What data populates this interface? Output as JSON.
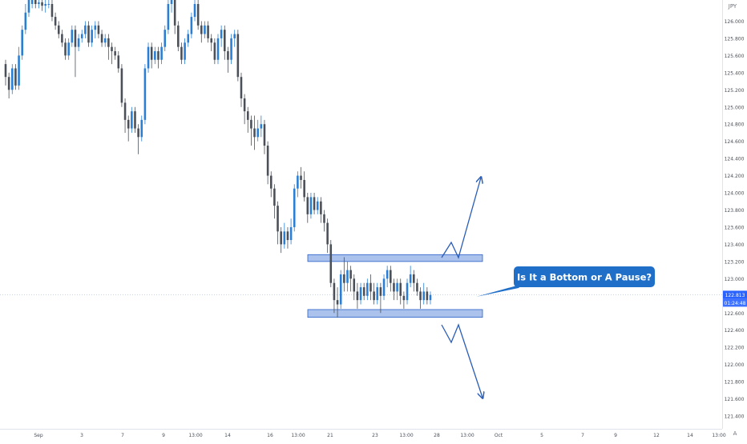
{
  "chart_data": {
    "type": "candlestick",
    "currency_label": "JPY",
    "y_axis_ticks": [
      "126.000",
      "125.800",
      "125.600",
      "125.400",
      "125.200",
      "125.000",
      "124.800",
      "124.600",
      "124.400",
      "124.200",
      "124.000",
      "123.800",
      "123.600",
      "123.400",
      "123.200",
      "123.000",
      "122.800",
      "122.600",
      "122.400",
      "122.200",
      "122.000",
      "121.800",
      "121.600",
      "121.400"
    ],
    "x_axis_ticks": [
      "Sep",
      "3",
      "7",
      "9",
      "13:00",
      "14",
      "16",
      "13:00",
      "21",
      "23",
      "13:00",
      "28",
      "13:00",
      "Oct",
      "5",
      "7",
      "9",
      "12",
      "14",
      "13:00"
    ],
    "last_price": "122.813",
    "countdown": "01:24:48",
    "axis_mode_label": "A",
    "annotation": "Is It a Bottom or A Pause?",
    "resistance_zone": [
      123.2,
      123.28
    ],
    "support_zone": [
      122.55,
      122.64
    ],
    "ylim": [
      121.35,
      126.25
    ],
    "colors": {
      "up": "#2a7fd4",
      "down": "#4a4f58",
      "zone": "#8faee6",
      "zone_border": "#2a62c8",
      "arrow": "#2a5db8",
      "label_bg": "#1f6fc9",
      "price_tag": "#2962ff"
    },
    "candles": [
      [
        125.5,
        125.35,
        125.25,
        125.55
      ],
      [
        125.35,
        125.2,
        125.1,
        125.4
      ],
      [
        125.2,
        125.45,
        125.15,
        125.5
      ],
      [
        125.45,
        125.25,
        125.2,
        125.5
      ],
      [
        125.25,
        125.6,
        125.2,
        125.7
      ],
      [
        125.6,
        125.9,
        125.55,
        125.95
      ],
      [
        125.9,
        126.1,
        125.85,
        126.2
      ],
      [
        126.1,
        126.25,
        126.05,
        126.3
      ],
      [
        126.2,
        126.25,
        126.15,
        126.35
      ],
      [
        126.25,
        126.2,
        126.15,
        126.3
      ],
      [
        126.2,
        126.22,
        126.15,
        126.28
      ],
      [
        126.22,
        126.18,
        126.12,
        126.25
      ],
      [
        126.18,
        126.2,
        126.1,
        126.25
      ],
      [
        126.2,
        126.2,
        126.15,
        126.28
      ],
      [
        126.2,
        126.05,
        126.0,
        126.25
      ],
      [
        126.05,
        125.95,
        125.9,
        126.1
      ],
      [
        125.95,
        125.85,
        125.8,
        126.0
      ],
      [
        125.85,
        125.75,
        125.7,
        125.9
      ],
      [
        125.75,
        125.6,
        125.55,
        125.8
      ],
      [
        125.6,
        125.75,
        125.55,
        125.8
      ],
      [
        125.75,
        125.9,
        125.7,
        125.95
      ],
      [
        125.9,
        125.7,
        125.35,
        125.95
      ],
      [
        125.7,
        125.8,
        125.65,
        125.85
      ],
      [
        125.8,
        125.85,
        125.75,
        125.9
      ],
      [
        125.85,
        125.95,
        125.8,
        126.0
      ],
      [
        125.95,
        125.75,
        125.7,
        126.0
      ],
      [
        125.75,
        125.9,
        125.7,
        125.95
      ],
      [
        125.9,
        125.95,
        125.8,
        126.0
      ],
      [
        125.95,
        125.85,
        125.8,
        126.0
      ],
      [
        125.85,
        125.75,
        125.7,
        125.9
      ],
      [
        125.75,
        125.8,
        125.7,
        125.85
      ],
      [
        125.8,
        125.7,
        125.55,
        125.85
      ],
      [
        125.7,
        125.65,
        125.5,
        125.75
      ],
      [
        125.65,
        125.6,
        125.55,
        125.7
      ],
      [
        125.6,
        125.45,
        125.4,
        125.65
      ],
      [
        125.45,
        125.05,
        125.0,
        125.5
      ],
      [
        125.05,
        124.85,
        124.7,
        125.1
      ],
      [
        124.85,
        124.75,
        124.6,
        124.9
      ],
      [
        124.75,
        124.95,
        124.7,
        125.0
      ],
      [
        124.95,
        124.75,
        124.7,
        125.0
      ],
      [
        124.75,
        124.65,
        124.45,
        124.8
      ],
      [
        124.65,
        124.85,
        124.6,
        124.9
      ],
      [
        124.85,
        125.45,
        124.8,
        125.5
      ],
      [
        125.45,
        125.7,
        125.4,
        125.75
      ],
      [
        125.7,
        125.55,
        125.45,
        125.75
      ],
      [
        125.55,
        125.65,
        125.5,
        125.7
      ],
      [
        125.65,
        125.55,
        125.45,
        125.7
      ],
      [
        125.55,
        125.7,
        125.5,
        125.75
      ],
      [
        125.7,
        125.9,
        125.65,
        125.95
      ],
      [
        125.9,
        126.2,
        125.85,
        126.25
      ],
      [
        126.2,
        126.3,
        126.1,
        126.35
      ],
      [
        126.3,
        125.95,
        125.85,
        126.35
      ],
      [
        125.95,
        125.7,
        125.65,
        126.0
      ],
      [
        125.7,
        125.55,
        125.5,
        125.75
      ],
      [
        125.55,
        125.75,
        125.5,
        125.8
      ],
      [
        125.75,
        125.85,
        125.7,
        125.9
      ],
      [
        125.85,
        126.05,
        125.8,
        126.1
      ],
      [
        126.05,
        126.2,
        126.0,
        126.25
      ],
      [
        126.2,
        125.95,
        125.9,
        126.25
      ],
      [
        125.95,
        125.85,
        125.75,
        126.0
      ],
      [
        125.85,
        125.95,
        125.8,
        126.0
      ],
      [
        125.95,
        125.8,
        125.75,
        126.0
      ],
      [
        125.8,
        125.75,
        125.65,
        125.85
      ],
      [
        125.75,
        125.55,
        125.5,
        125.8
      ],
      [
        125.55,
        125.8,
        125.5,
        125.85
      ],
      [
        125.8,
        125.9,
        125.7,
        125.95
      ],
      [
        125.9,
        125.65,
        125.55,
        125.95
      ],
      [
        125.65,
        125.55,
        125.4,
        125.7
      ],
      [
        125.55,
        125.8,
        125.5,
        125.85
      ],
      [
        125.8,
        125.85,
        125.7,
        125.9
      ],
      [
        125.85,
        125.35,
        125.3,
        125.9
      ],
      [
        125.35,
        125.1,
        125.0,
        125.4
      ],
      [
        125.1,
        124.95,
        124.8,
        125.15
      ],
      [
        124.95,
        124.85,
        124.7,
        125.0
      ],
      [
        124.85,
        124.75,
        124.55,
        124.9
      ],
      [
        124.75,
        124.65,
        124.5,
        124.9
      ],
      [
        124.65,
        124.75,
        124.6,
        124.85
      ],
      [
        124.75,
        124.8,
        124.65,
        124.9
      ],
      [
        124.8,
        124.55,
        124.45,
        124.85
      ],
      [
        124.55,
        124.2,
        124.1,
        124.6
      ],
      [
        124.2,
        124.05,
        123.95,
        124.25
      ],
      [
        124.05,
        123.85,
        123.7,
        124.1
      ],
      [
        123.85,
        123.55,
        123.4,
        123.9
      ],
      [
        123.55,
        123.4,
        123.3,
        123.6
      ],
      [
        123.4,
        123.55,
        123.35,
        123.65
      ],
      [
        123.55,
        123.45,
        123.35,
        123.6
      ],
      [
        123.45,
        123.6,
        123.4,
        123.7
      ],
      [
        123.6,
        124.05,
        123.55,
        124.1
      ],
      [
        124.05,
        124.2,
        123.95,
        124.25
      ],
      [
        124.2,
        124.15,
        124.05,
        124.3
      ],
      [
        124.15,
        123.95,
        123.9,
        124.25
      ],
      [
        123.95,
        123.75,
        123.65,
        124.0
      ],
      [
        123.75,
        123.95,
        123.7,
        124.0
      ],
      [
        123.95,
        123.8,
        123.75,
        124.0
      ],
      [
        123.8,
        123.9,
        123.75,
        123.95
      ],
      [
        123.9,
        123.75,
        123.65,
        123.95
      ],
      [
        123.75,
        123.65,
        123.55,
        123.8
      ],
      [
        123.65,
        123.4,
        123.3,
        123.7
      ],
      [
        123.4,
        122.95,
        122.9,
        123.45
      ],
      [
        122.95,
        122.75,
        122.6,
        123.0
      ],
      [
        122.75,
        122.7,
        122.55,
        122.9
      ],
      [
        122.7,
        123.05,
        122.65,
        123.1
      ],
      [
        123.05,
        122.95,
        122.85,
        123.25
      ],
      [
        122.95,
        123.1,
        122.85,
        123.2
      ],
      [
        123.1,
        123.0,
        122.85,
        123.15
      ],
      [
        123.0,
        122.85,
        122.75,
        123.05
      ],
      [
        122.85,
        122.75,
        122.65,
        122.95
      ],
      [
        122.75,
        122.9,
        122.7,
        122.95
      ],
      [
        122.9,
        122.8,
        122.75,
        122.95
      ],
      [
        122.8,
        122.95,
        122.75,
        123.0
      ],
      [
        122.95,
        122.85,
        122.75,
        123.05
      ],
      [
        122.85,
        122.75,
        122.7,
        122.95
      ],
      [
        122.75,
        122.9,
        122.7,
        122.95
      ],
      [
        122.9,
        122.8,
        122.6,
        122.95
      ],
      [
        122.8,
        123.0,
        122.75,
        123.05
      ],
      [
        123.0,
        123.1,
        122.9,
        123.15
      ],
      [
        123.1,
        122.95,
        122.85,
        123.15
      ],
      [
        122.95,
        122.85,
        122.75,
        123.0
      ],
      [
        122.85,
        122.95,
        122.75,
        123.0
      ],
      [
        122.95,
        122.8,
        122.7,
        123.0
      ],
      [
        122.8,
        122.75,
        122.65,
        122.85
      ],
      [
        122.75,
        122.95,
        122.7,
        123.0
      ],
      [
        122.95,
        123.05,
        122.9,
        123.15
      ],
      [
        123.05,
        122.95,
        122.85,
        123.1
      ],
      [
        122.95,
        122.85,
        122.8,
        123.0
      ],
      [
        122.85,
        122.75,
        122.65,
        122.9
      ],
      [
        122.75,
        122.85,
        122.7,
        122.95
      ],
      [
        122.85,
        122.75,
        122.7,
        122.9
      ],
      [
        122.75,
        122.81,
        122.7,
        122.85
      ]
    ]
  }
}
